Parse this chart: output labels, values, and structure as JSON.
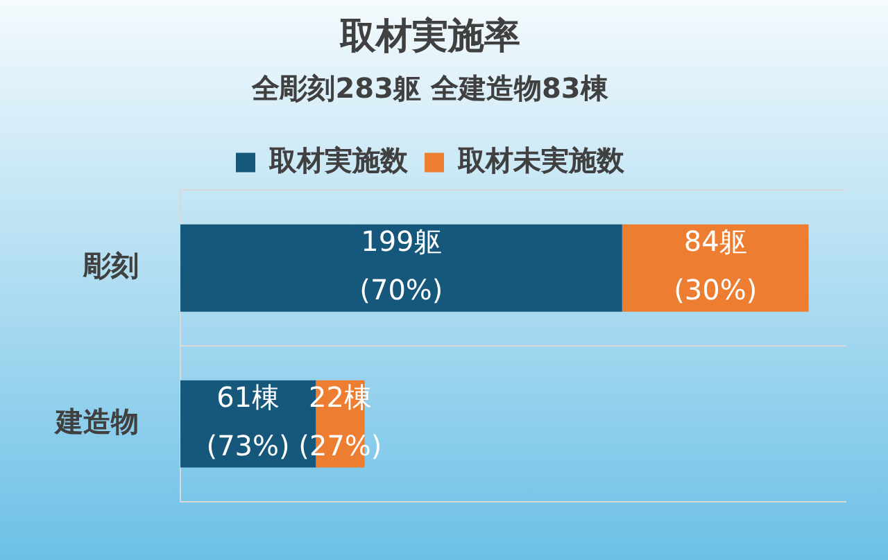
{
  "chart_data": {
    "type": "bar",
    "orientation": "horizontal",
    "stacked": true,
    "title": "取材実施率",
    "subtitle": "全彫刻283躯 全建造物83棟",
    "categories": [
      "彫刻",
      "建造物"
    ],
    "series": [
      {
        "name": "取材実施数",
        "color": "#15587b",
        "values": [
          199,
          61
        ],
        "value_labels": [
          "199躯\n(70%)",
          "61棟\n(73%)"
        ]
      },
      {
        "name": "取材未実施数",
        "color": "#ed7d31",
        "values": [
          84,
          22
        ],
        "value_labels": [
          "84躯\n(30%)",
          "22棟\n(27%)"
        ]
      }
    ],
    "xlim": [
      0,
      300
    ],
    "tick_labels": "y",
    "grid": "y",
    "legend": "top"
  }
}
